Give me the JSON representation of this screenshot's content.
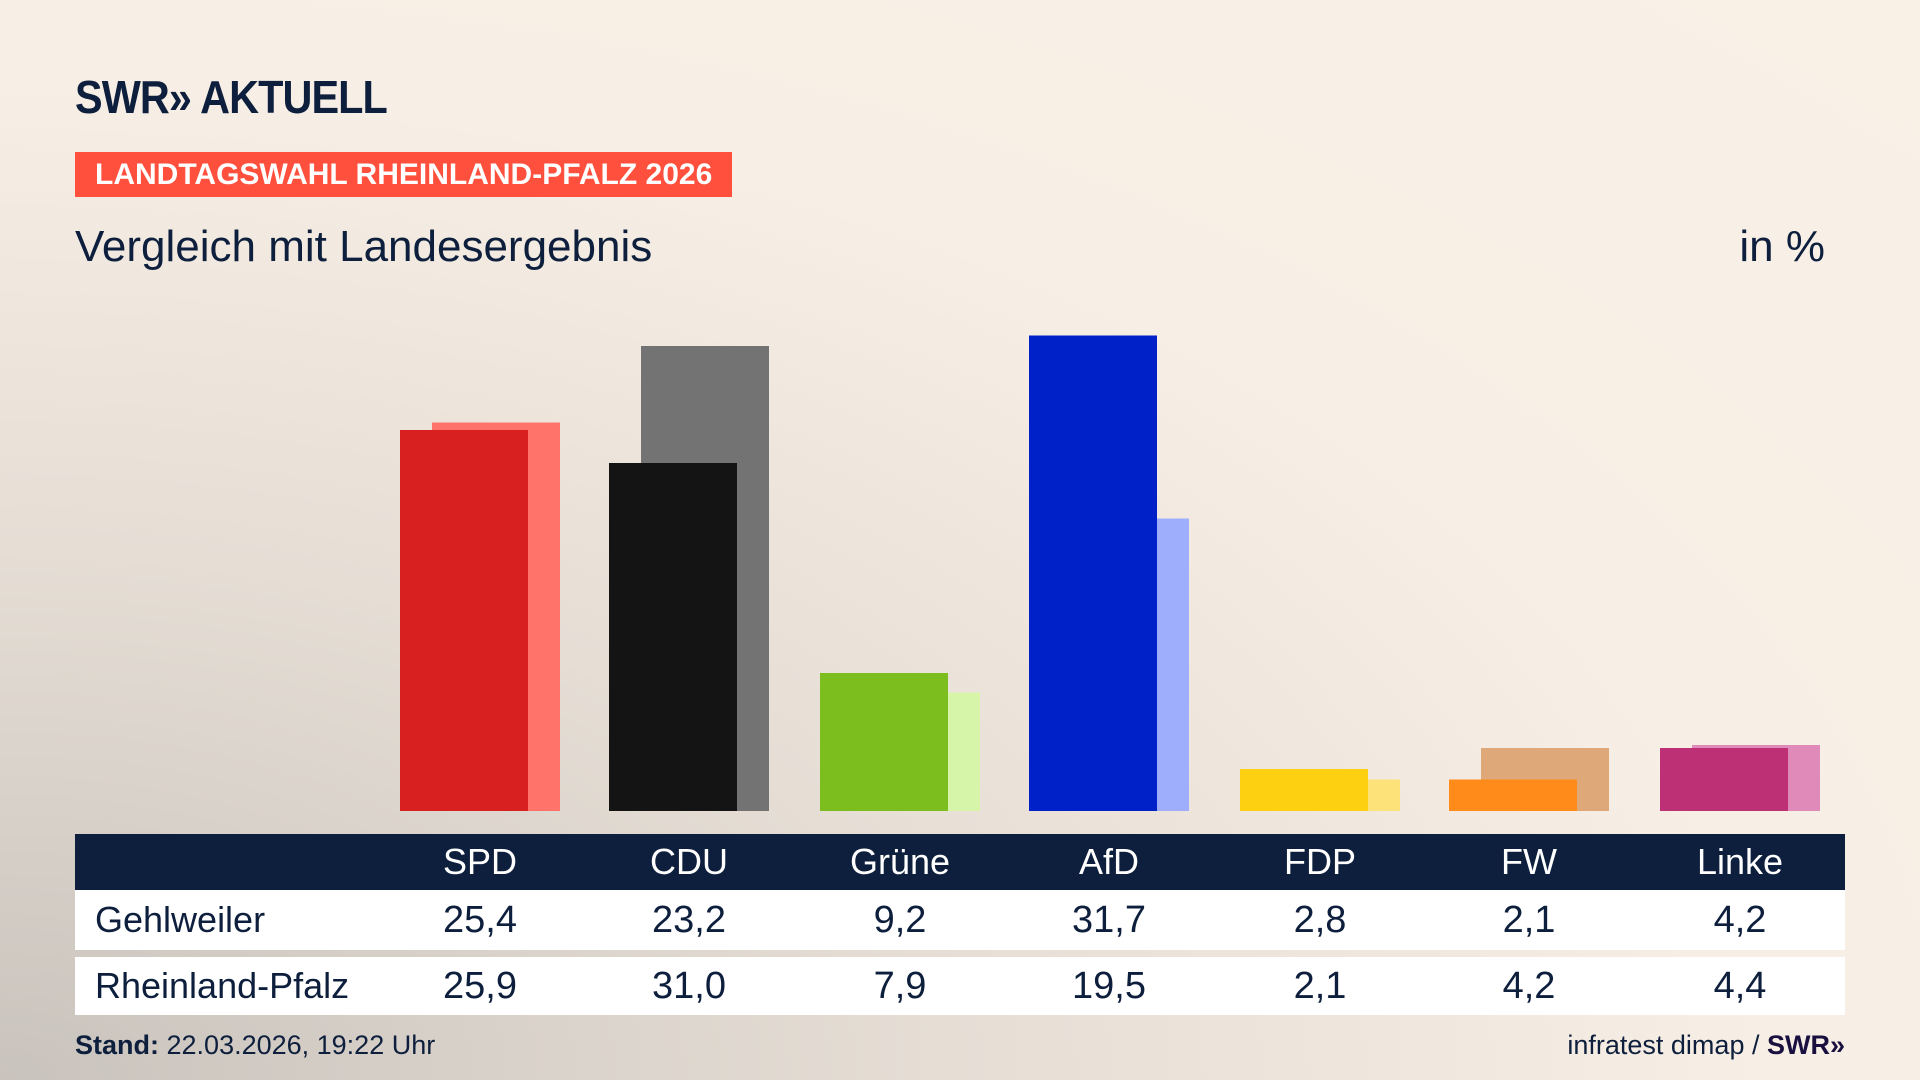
{
  "header": {
    "logo": "SWR» AKTUELL",
    "tag": "LANDTAGSWAHL RHEINLAND-PFALZ 2026",
    "subtitle": "Vergleich mit Landesergebnis",
    "unit": "in %"
  },
  "chart_data": {
    "type": "bar",
    "categories": [
      "SPD",
      "CDU",
      "Grüne",
      "AfD",
      "FDP",
      "FW",
      "Linke"
    ],
    "series": [
      {
        "name": "Gehlweiler",
        "values": [
          25.4,
          23.2,
          9.2,
          31.7,
          2.8,
          2.1,
          4.2
        ],
        "display": [
          "25,4",
          "23,2",
          "9,2",
          "31,7",
          "2,8",
          "2,1",
          "4,2"
        ]
      },
      {
        "name": "Rheinland-Pfalz",
        "values": [
          25.9,
          31.0,
          7.9,
          19.5,
          2.1,
          4.2,
          4.4
        ],
        "display": [
          "25,9",
          "31,0",
          "7,9",
          "19,5",
          "2,1",
          "4,2",
          "4,4"
        ]
      }
    ],
    "colors_primary": [
      "#d82020",
      "#141414",
      "#7bbe1e",
      "#0020c8",
      "#fdd012",
      "#ff8c1a",
      "#bd3075"
    ],
    "colors_secondary": [
      "#ff736b",
      "#737373",
      "#d6f5a8",
      "#9eaefc",
      "#fde27a",
      "#dea878",
      "#df8ab8"
    ],
    "ylim": [
      0,
      33
    ],
    "grid": false
  },
  "footer": {
    "stand_label": "Stand:",
    "stand_value": "22.03.2026, 19:22 Uhr",
    "source": "infratest dimap /",
    "source_logo": "SWR»"
  }
}
